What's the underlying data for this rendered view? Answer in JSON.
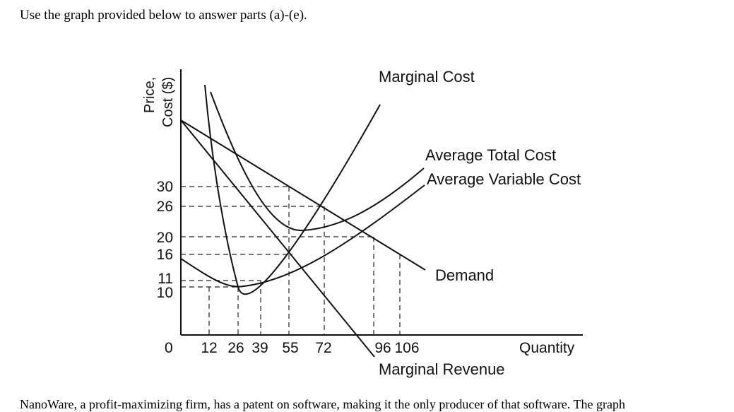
{
  "intro_text": "Use the graph provided below to answer parts (a)-(e).",
  "cutoff_text": "NanoWare, a profit-maximizing firm, has a patent on software, making it the only producer of that software. The graph",
  "graph": {
    "y_axis_label_line1": "Price,",
    "y_axis_label_line2": "Cost ($)",
    "x_axis_label": "Quantity",
    "origin_label": "0",
    "y_ticks": [
      "30",
      "26",
      "20",
      "16",
      "11",
      "10"
    ],
    "x_ticks": [
      "12",
      "26",
      "39",
      "55",
      "72",
      "96",
      "106"
    ],
    "curve_labels": {
      "marginal_cost": "Marginal Cost",
      "average_total_cost": "Average Total Cost",
      "average_variable_cost": "Average Variable Cost",
      "demand": "Demand",
      "marginal_revenue": "Marginal Revenue"
    }
  }
}
